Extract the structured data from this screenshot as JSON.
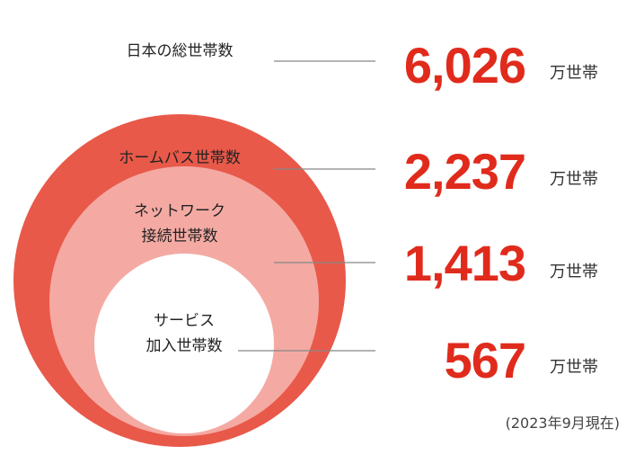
{
  "items": [
    {
      "label": [
        "日本の総世帯数"
      ],
      "value": "6,026",
      "unit": "万世帯"
    },
    {
      "label": [
        "ホームバス世帯数"
      ],
      "value": "2,237",
      "unit": "万世帯"
    },
    {
      "label": [
        "ネットワーク",
        "接続世帯数"
      ],
      "value": "1,413",
      "unit": "万世帯"
    },
    {
      "label": [
        "サービス",
        "加入世帯数"
      ],
      "value": "567",
      "unit": "万世帯"
    }
  ],
  "note": "(2023年9月現在)"
}
